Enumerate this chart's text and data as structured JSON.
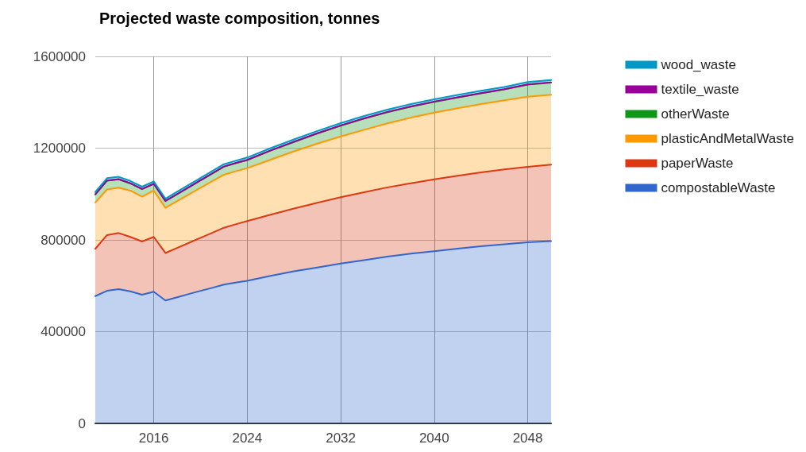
{
  "chart_data": {
    "type": "area",
    "title": "Projected waste composition, tonnes",
    "stacked": true,
    "x": [
      2011,
      2012,
      2013,
      2014,
      2015,
      2016,
      2017,
      2018,
      2019,
      2020,
      2021,
      2022,
      2023,
      2024,
      2026,
      2028,
      2030,
      2032,
      2034,
      2036,
      2038,
      2040,
      2042,
      2044,
      2046,
      2048,
      2050
    ],
    "series": [
      {
        "name": "compostableWaste",
        "color": "#3366cc",
        "values": [
          555000,
          578000,
          585000,
          576000,
          561000,
          574000,
          536000,
          550000,
          564000,
          578000,
          591000,
          605000,
          614000,
          622000,
          643000,
          663000,
          680000,
          697000,
          712000,
          727000,
          740000,
          751000,
          762000,
          772000,
          781000,
          790000,
          795000
        ]
      },
      {
        "name": "paperWaste",
        "color": "#dc3912",
        "values": [
          206000,
          243000,
          245000,
          237000,
          232000,
          239000,
          207000,
          215000,
          223000,
          231000,
          240000,
          248000,
          254000,
          260000,
          267000,
          274000,
          282000,
          289000,
          296000,
          302000,
          307000,
          313000,
          318000,
          322000,
          326000,
          329000,
          333000
        ]
      },
      {
        "name": "plasticAndMetalWaste",
        "color": "#ff9900",
        "values": [
          202000,
          199000,
          198000,
          202000,
          195000,
          202000,
          197000,
          204000,
          211000,
          218000,
          225000,
          231000,
          231000,
          231000,
          240000,
          249000,
          258000,
          265000,
          272000,
          279000,
          286000,
          291000,
          294000,
          298000,
          302000,
          305000,
          305000
        ]
      },
      {
        "name": "otherWaste",
        "color": "#109618",
        "values": [
          35000,
          38000,
          36000,
          31000,
          33000,
          29000,
          29000,
          30000,
          31000,
          32000,
          33000,
          35000,
          35000,
          35000,
          39000,
          41000,
          44000,
          47000,
          49000,
          49000,
          48000,
          47000,
          47000,
          47000,
          47000,
          53000,
          53000
        ]
      },
      {
        "name": "textile_waste",
        "color": "#990099",
        "values": [
          1000,
          1000,
          1000,
          1000,
          1000,
          1000,
          1000,
          1000,
          1000,
          1000,
          1000,
          1000,
          1000,
          1000,
          1000,
          1000,
          1000,
          1000,
          1000,
          1000,
          1000,
          1000,
          1000,
          1000,
          1000,
          1000,
          1000
        ]
      },
      {
        "name": "wood_waste",
        "color": "#0099c6",
        "values": [
          10000,
          10000,
          10000,
          10000,
          10000,
          10000,
          10000,
          10000,
          10000,
          10000,
          10000,
          10000,
          10000,
          10000,
          10000,
          10000,
          10000,
          10000,
          10000,
          10000,
          10000,
          10000,
          10000,
          10000,
          10000,
          10000,
          10000
        ]
      }
    ],
    "xlim": [
      2011,
      2050
    ],
    "xticks": [
      2016,
      2024,
      2032,
      2040,
      2048
    ],
    "ylim": [
      0,
      1600000
    ],
    "yticks": [
      0,
      400000,
      800000,
      1200000,
      1600000
    ],
    "grid": true,
    "legend": "right",
    "marker": "none"
  }
}
